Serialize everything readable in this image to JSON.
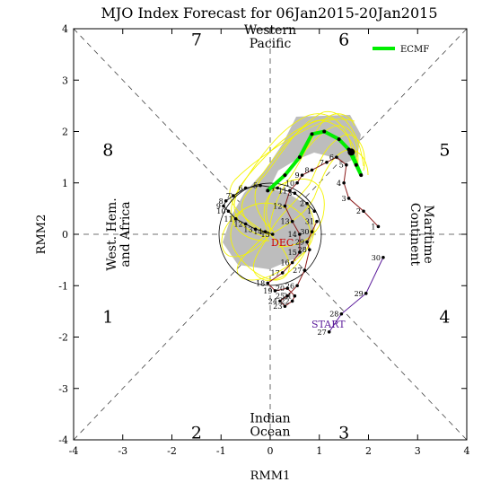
{
  "chart_data": {
    "type": "line",
    "title": "MJO Index Forecast for 06Jan2015-20Jan2015",
    "xlabel": "RMM1",
    "ylabel": "RMM2",
    "xlim": [
      -4,
      4
    ],
    "ylim": [
      -4,
      4
    ],
    "x_ticks": [
      "-4",
      "-3",
      "-2",
      "-1",
      "0",
      "1",
      "2",
      "3",
      "4"
    ],
    "y_ticks": [
      "-4",
      "-3",
      "-2",
      "-1",
      "0",
      "1",
      "2",
      "3",
      "4"
    ],
    "grid": false,
    "legend": {
      "placement": "top-right",
      "entries": [
        "ECMF"
      ]
    },
    "phases": [
      {
        "label": "1",
        "x": -3.3,
        "y": -1.6
      },
      {
        "label": "2",
        "x": -1.5,
        "y": -3.85
      },
      {
        "label": "3",
        "x": 1.5,
        "y": -3.85
      },
      {
        "label": "4",
        "x": 3.55,
        "y": -1.6
      },
      {
        "label": "5",
        "x": 3.55,
        "y": 1.65
      },
      {
        "label": "6",
        "x": 1.5,
        "y": 3.8
      },
      {
        "label": "7",
        "x": -1.5,
        "y": 3.8
      },
      {
        "label": "8",
        "x": -3.3,
        "y": 1.65
      }
    ],
    "regions": [
      {
        "lines": [
          "Western",
          "Pacific"
        ],
        "x": 0,
        "y": 3.85
      },
      {
        "lines": [
          "Indian",
          "Ocean"
        ],
        "x": 0,
        "y": -3.7
      },
      {
        "lines": [
          "West. Hem.",
          "and Africa"
        ],
        "x": -3.1,
        "y": 0,
        "rotate": -90
      },
      {
        "lines": [
          "Maritime",
          "Continent"
        ],
        "x": 3.1,
        "y": 0,
        "rotate": 90
      }
    ],
    "observed_markers": [
      "START",
      "DEC"
    ],
    "series": [
      {
        "name": "observed_nov",
        "color": "#5a1a9a",
        "points": [
          {
            "label": "27",
            "x": 1.2,
            "y": -1.9
          },
          {
            "label": "28",
            "x": 1.45,
            "y": -1.55
          },
          {
            "label": "29",
            "x": 1.95,
            "y": -1.15
          },
          {
            "label": "30",
            "x": 2.3,
            "y": -0.45
          }
        ]
      },
      {
        "name": "observed_dec",
        "color": "#8b1a1a",
        "points": [
          {
            "label": "1",
            "x": 2.2,
            "y": 0.15
          },
          {
            "label": "2",
            "x": 1.9,
            "y": 0.45
          },
          {
            "label": "3",
            "x": 1.6,
            "y": 0.7
          },
          {
            "label": "4",
            "x": 1.5,
            "y": 1.0
          },
          {
            "label": "5",
            "x": 1.55,
            "y": 1.35
          },
          {
            "label": "6",
            "x": 1.35,
            "y": 1.5
          },
          {
            "label": "7",
            "x": 1.15,
            "y": 1.4
          },
          {
            "label": "8",
            "x": 0.85,
            "y": 1.25
          },
          {
            "label": "9",
            "x": 0.65,
            "y": 1.15
          },
          {
            "label": "10",
            "x": 0.55,
            "y": 1.0
          },
          {
            "label": "11",
            "x": 0.4,
            "y": 0.85
          },
          {
            "label": "12",
            "x": 0.3,
            "y": 0.55
          },
          {
            "label": "13",
            "x": 0.45,
            "y": 0.25
          },
          {
            "label": "14",
            "x": 0.6,
            "y": 0.0
          },
          {
            "label": "15",
            "x": 0.6,
            "y": -0.35
          },
          {
            "label": "16",
            "x": 0.45,
            "y": -0.55
          },
          {
            "label": "17",
            "x": 0.25,
            "y": -0.75
          },
          {
            "label": "18",
            "x": -0.05,
            "y": -0.95
          },
          {
            "label": "19",
            "x": 0.1,
            "y": -1.1
          },
          {
            "label": "20",
            "x": 0.35,
            "y": -1.05
          },
          {
            "label": "21",
            "x": 0.5,
            "y": -1.2
          },
          {
            "label": "22",
            "x": 0.45,
            "y": -1.3
          },
          {
            "label": "23",
            "x": 0.3,
            "y": -1.4
          },
          {
            "label": "24",
            "x": 0.2,
            "y": -1.3
          },
          {
            "label": "25",
            "x": 0.35,
            "y": -1.2
          },
          {
            "label": "26",
            "x": 0.55,
            "y": -1.0
          },
          {
            "label": "27",
            "x": 0.7,
            "y": -0.7
          },
          {
            "label": "28",
            "x": 0.8,
            "y": -0.3
          },
          {
            "label": "29",
            "x": 0.75,
            "y": -0.15
          },
          {
            "label": "30",
            "x": 0.85,
            "y": 0.05
          },
          {
            "label": "31",
            "x": 0.95,
            "y": 0.25
          }
        ]
      },
      {
        "name": "observed_jan",
        "color": "#1a1a1a",
        "points": [
          {
            "label": "1",
            "x": 0.9,
            "y": 0.45
          },
          {
            "label": "2",
            "x": 0.75,
            "y": 0.6
          },
          {
            "label": "3",
            "x": 0.5,
            "y": 0.8
          },
          {
            "label": "4",
            "x": 0.15,
            "y": 0.9
          },
          {
            "label": "5",
            "x": -0.2,
            "y": 0.95
          },
          {
            "label": "6",
            "x": -0.5,
            "y": 0.9
          },
          {
            "label": "7",
            "x": -0.75,
            "y": 0.75
          },
          {
            "label": "8",
            "x": -0.9,
            "y": 0.65
          },
          {
            "label": "9",
            "x": -0.95,
            "y": 0.55
          },
          {
            "label": "10",
            "x": -0.85,
            "y": 0.45
          },
          {
            "label": "11",
            "x": -0.7,
            "y": 0.3
          },
          {
            "label": "12",
            "x": -0.5,
            "y": 0.2
          },
          {
            "label": "13",
            "x": -0.3,
            "y": 0.1
          },
          {
            "label": "14",
            "x": -0.1,
            "y": 0.05
          },
          {
            "label": "15",
            "x": 0.05,
            "y": 0.0
          }
        ]
      },
      {
        "name": "ECMF",
        "color": "#00ee00",
        "points": [
          {
            "x": -0.05,
            "y": 0.85
          },
          {
            "x": 0.3,
            "y": 1.15
          },
          {
            "x": 0.6,
            "y": 1.5
          },
          {
            "x": 0.85,
            "y": 1.95
          },
          {
            "x": 1.1,
            "y": 2.0
          },
          {
            "x": 1.4,
            "y": 1.85
          },
          {
            "x": 1.6,
            "y": 1.65
          },
          {
            "x": 1.75,
            "y": 1.35
          },
          {
            "x": 1.85,
            "y": 1.15
          },
          {
            "x": 1.65,
            "y": 1.6
          }
        ]
      }
    ]
  }
}
